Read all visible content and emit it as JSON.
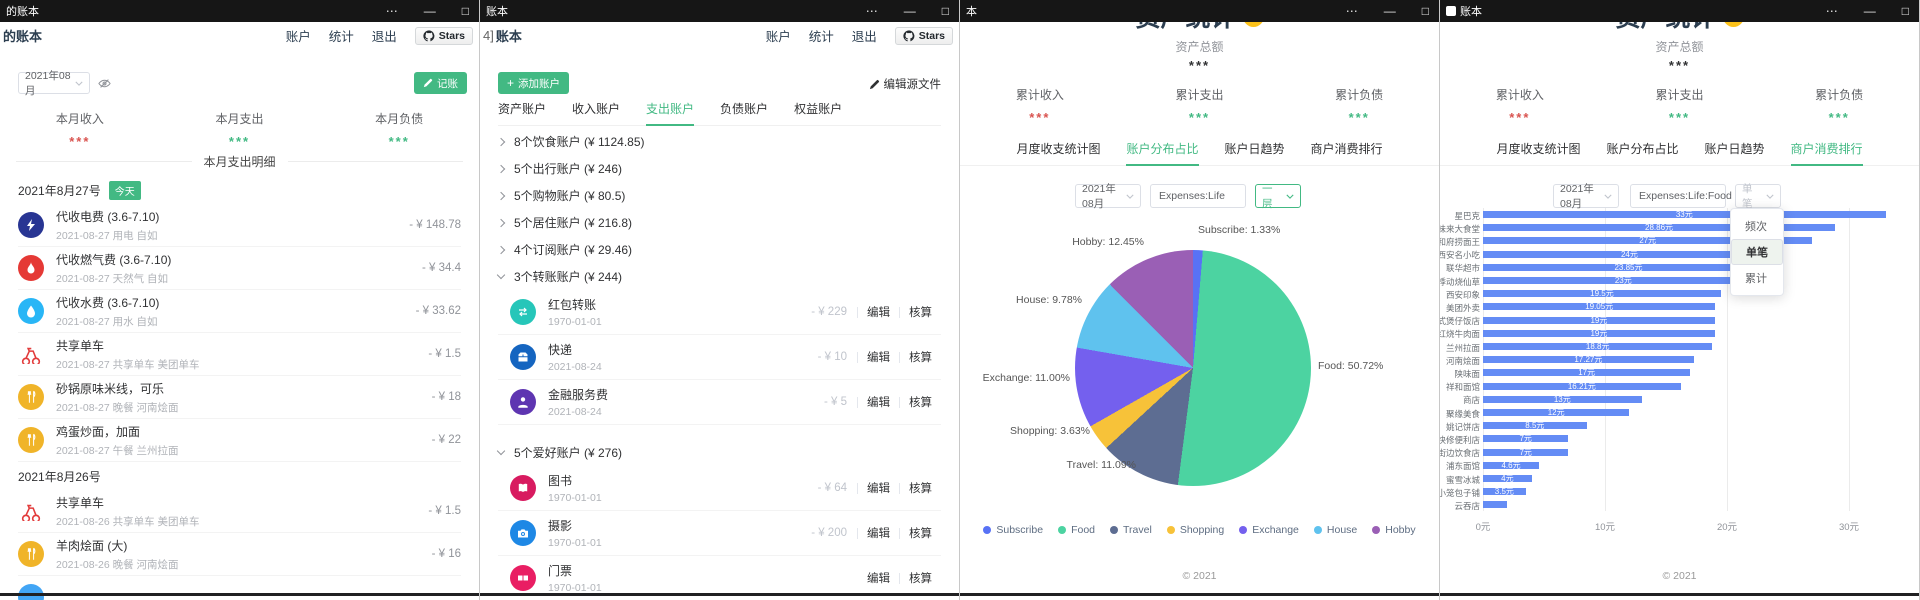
{
  "colors": {
    "green": "#42b983",
    "red": "#d9534f",
    "bar_blue": "#648cf5",
    "titlebar": "#161616"
  },
  "windows": {
    "w1": {
      "titlebar": "的账本",
      "header": {
        "title": "的账本",
        "nav": [
          "账户",
          "统计",
          "退出"
        ],
        "stars": "Stars"
      },
      "toolbar": {
        "month": "2021年08月",
        "record_button": "记账"
      },
      "summary": [
        {
          "label": "本月收入",
          "value": "***",
          "color": "#d9534f"
        },
        {
          "label": "本月支出",
          "value": "***",
          "color": "#42b983"
        },
        {
          "label": "本月负债",
          "value": "***",
          "color": "#42b983"
        }
      ],
      "divider": "本月支出明细",
      "groups": [
        {
          "date": "2021年8月27号",
          "badge": "今天",
          "items": [
            {
              "icon": "bolt",
              "bg": "#283593",
              "title": "代收电费 (3.6-7.10)",
              "sub": "2021-08-27 用电 自如",
              "amount": "- ¥ 148.78"
            },
            {
              "icon": "flame",
              "bg": "#e53935",
              "title": "代收燃气费 (3.6-7.10)",
              "sub": "2021-08-27 天然气 自如",
              "amount": "- ¥ 34.4"
            },
            {
              "icon": "drop",
              "bg": "#29b6f6",
              "title": "代收水费 (3.6-7.10)",
              "sub": "2021-08-27 用水 自如",
              "amount": "- ¥ 33.62"
            },
            {
              "icon": "bike",
              "bg": "",
              "title": "共享单车",
              "sub": "2021-08-27 共享单车 美团单车",
              "amount": "- ¥ 1.5"
            },
            {
              "icon": "food",
              "bg": "#f0b429",
              "title": "砂锅原味米线，可乐",
              "sub": "2021-08-27 晚餐 河南烩面",
              "amount": "- ¥ 18"
            },
            {
              "icon": "food",
              "bg": "#f0b429",
              "title": "鸡蛋炒面，加面",
              "sub": "2021-08-27 午餐 兰州拉面",
              "amount": "- ¥ 22"
            }
          ]
        },
        {
          "date": "2021年8月26号",
          "badge": "",
          "items": [
            {
              "icon": "bike",
              "bg": "",
              "title": "共享单车",
              "sub": "2021-08-26 共享单车 美团单车",
              "amount": "- ¥ 1.5"
            },
            {
              "icon": "food",
              "bg": "#f0b429",
              "title": "羊肉烩面 (大)",
              "sub": "2021-08-26 晚餐 河南烩面",
              "amount": "- ¥ 16"
            },
            {
              "icon": "blank",
              "bg": "#42a5f5",
              "title": "",
              "sub": "",
              "amount": ""
            }
          ]
        }
      ]
    },
    "w2": {
      "titlebar": "账本",
      "header": {
        "fragment": "4]",
        "title": "账本",
        "nav": [
          "账户",
          "统计",
          "退出"
        ],
        "stars": "Stars"
      },
      "add_button": "添加账户",
      "edit_source": "编辑源文件",
      "tabs": [
        "资产账户",
        "收入账户",
        "支出账户",
        "负债账户",
        "权益账户"
      ],
      "active_tab": 2,
      "tree": [
        {
          "type": "collapsed",
          "label": "8个饮食账户 (¥ 1124.85)"
        },
        {
          "type": "collapsed",
          "label": "5个出行账户 (¥ 246)"
        },
        {
          "type": "collapsed",
          "label": "5个购物账户 (¥ 80.5)"
        },
        {
          "type": "collapsed",
          "label": "5个居住账户 (¥ 216.8)"
        },
        {
          "type": "collapsed",
          "label": "4个订阅账户 (¥ 29.46)"
        },
        {
          "type": "expanded",
          "label": "3个转账账户 (¥ 244)",
          "children": [
            {
              "icon": "transfer",
              "bg": "#26c6b9",
              "title": "红包转账",
              "sub": "1970-01-01",
              "amount": "- ¥ 229",
              "actions": [
                "编辑",
                "核算"
              ]
            },
            {
              "icon": "box",
              "bg": "#1565c0",
              "title": "快递",
              "sub": "2021-08-24",
              "amount": "- ¥ 10",
              "actions": [
                "编辑",
                "核算"
              ]
            },
            {
              "icon": "finance",
              "bg": "#5e35b1",
              "title": "金融服务费",
              "sub": "2021-08-24",
              "amount": "- ¥ 5",
              "actions": [
                "编辑",
                "核算"
              ]
            }
          ]
        },
        {
          "type": "expanded",
          "label": "5个爱好账户 (¥ 276)",
          "children": [
            {
              "icon": "book",
              "bg": "#d81b60",
              "title": "图书",
              "sub": "1970-01-01",
              "amount": "- ¥ 64",
              "actions": [
                "编辑",
                "核算"
              ]
            },
            {
              "icon": "camera",
              "bg": "#1e88e5",
              "title": "摄影",
              "sub": "1970-01-01",
              "amount": "- ¥ 200",
              "actions": [
                "编辑",
                "核算"
              ]
            },
            {
              "icon": "ticket",
              "bg": "#e91e63",
              "title": "门票",
              "sub": "1970-01-01",
              "amount": "",
              "actions": [
                "编辑",
                "核算"
              ]
            }
          ]
        }
      ]
    },
    "w3": {
      "titlebar": "本",
      "page_title": "资产统计",
      "total": {
        "label": "资产总额",
        "value": "***"
      },
      "summary": [
        {
          "label": "累计收入",
          "value": "***",
          "color": "#d9534f"
        },
        {
          "label": "累计支出",
          "value": "***",
          "color": "#42b983"
        },
        {
          "label": "累计负债",
          "value": "***",
          "color": "#42b983"
        }
      ],
      "tabs": [
        "月度收支统计图",
        "账户分布占比",
        "账户日趋势",
        "商户消费排行"
      ],
      "active_tab": 1,
      "filters": {
        "month": "2021年08月",
        "account": "Expenses:Life",
        "mode": "一层"
      },
      "footer": "© 2021"
    },
    "w4": {
      "titlebar": "账本",
      "page_title": "资产统计",
      "total": {
        "label": "资产总额",
        "value": "***"
      },
      "summary": [
        {
          "label": "累计收入",
          "value": "***",
          "color": "#d9534f"
        },
        {
          "label": "累计支出",
          "value": "***",
          "color": "#42b983"
        },
        {
          "label": "累计负债",
          "value": "***",
          "color": "#42b983"
        }
      ],
      "tabs": [
        "月度收支统计图",
        "账户分布占比",
        "账户日趋势",
        "商户消费排行"
      ],
      "active_tab": 3,
      "filters": {
        "month": "2021年08月",
        "account": "Expenses:Life:Food",
        "mode": "单笔"
      },
      "dropdown_menu": {
        "items": [
          "频次",
          "单笔",
          "累计"
        ],
        "selected": 1
      },
      "footer": "© 2021"
    }
  },
  "chart_data": [
    {
      "type": "pie",
      "title": "账户分布占比",
      "filters": [
        "2021年08月",
        "Expenses:Life",
        "一层"
      ],
      "series": [
        {
          "name": "Subscribe",
          "pct": 1.33,
          "color": "#5872f5"
        },
        {
          "name": "Food",
          "pct": 50.72,
          "color": "#4cd3a1"
        },
        {
          "name": "Travel",
          "pct": 11.09,
          "color": "#5d6d92"
        },
        {
          "name": "Shopping",
          "pct": 3.63,
          "color": "#f7c239"
        },
        {
          "name": "Exchange",
          "pct": 11.0,
          "color": "#7460ee"
        },
        {
          "name": "House",
          "pct": 9.78,
          "color": "#5fc2ee"
        },
        {
          "name": "Hobby",
          "pct": 12.45,
          "color": "#9a5fb5"
        }
      ],
      "slice_labels": [
        "Subscribe: 1.33%",
        "Food: 50.72%",
        "Travel: 11.09%",
        "Shopping: 3.63%",
        "Exchange: 11.00%",
        "House: 9.78%",
        "Hobby: 12.45%"
      ],
      "legend": [
        "Subscribe",
        "Food",
        "Travel",
        "Shopping",
        "Exchange",
        "House",
        "Hobby"
      ],
      "legend_position": "bottom"
    },
    {
      "type": "bar",
      "orientation": "horizontal",
      "title": "商户消费排行",
      "filters": [
        "2021年08月",
        "Expenses:Life:Food",
        "单笔"
      ],
      "unit": "元",
      "xlim": [
        0,
        35
      ],
      "xticks": [
        "0元",
        "10元",
        "20元",
        "30元"
      ],
      "xtick_values": [
        0,
        10,
        20,
        30
      ],
      "grid": true,
      "bar_color": "#648cf5",
      "categories": [
        "星巴克",
        "好味来大食堂",
        "和府捞面王",
        "西安名小吃",
        "联华超市",
        "悸动烧仙草",
        "西安印象",
        "美团外卖",
        "港式煲仔饭店",
        "红烧牛肉面",
        "兰州拉面",
        "河南烩面",
        "陕味面",
        "祥和面馆",
        "商店",
        "聚缘美食",
        "姚记饼店",
        "快修便利店",
        "街边饮食店",
        "浦东面馆",
        "蜜雪冰城",
        "小笼包子铺",
        "云吞店"
      ],
      "values": [
        33,
        28.86,
        27,
        24,
        23.85,
        23,
        19.5,
        19.05,
        19,
        19,
        18.8,
        17.27,
        17,
        16.21,
        13,
        12,
        8.5,
        7,
        7,
        4.6,
        4,
        3.5,
        2
      ]
    }
  ]
}
